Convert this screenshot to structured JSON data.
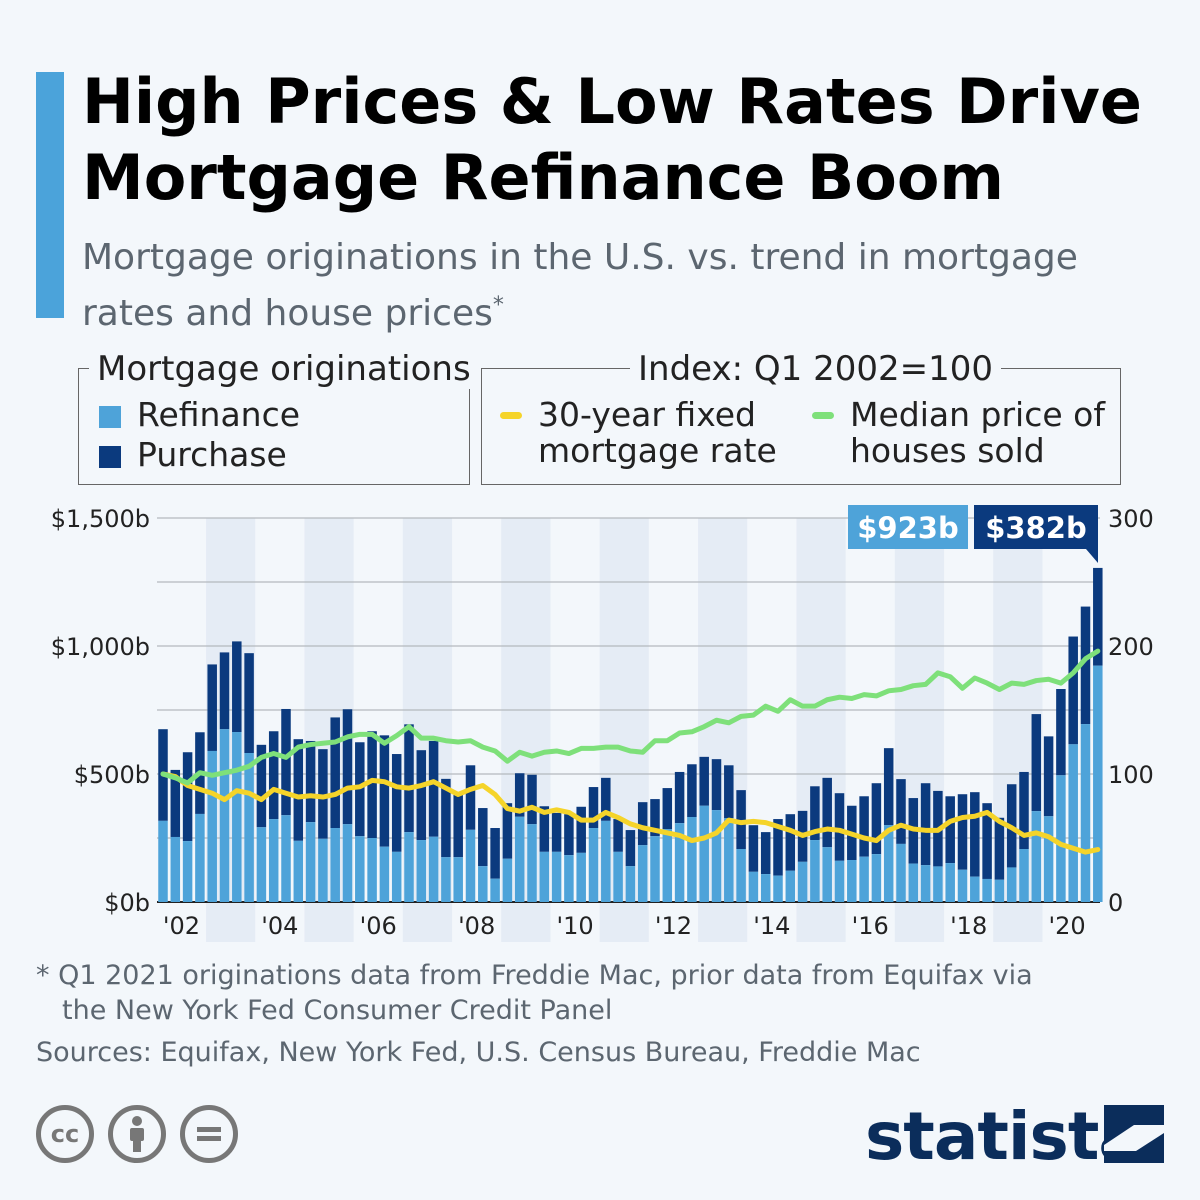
{
  "header": {
    "title": "High Prices & Low Rates Drive Mortgage Refinance Boom",
    "subtitle": "Mortgage originations in the U.S. vs. trend in mortgage rates and house prices",
    "subtitle_mark": "*"
  },
  "legend": {
    "left_title": "Mortgage originations",
    "refinance": "Refinance",
    "purchase": "Purchase",
    "right_title": "Index: Q1 2002=100",
    "rate_l1": "30-year fixed",
    "rate_l2": "mortgage rate",
    "price_l1": "Median price of",
    "price_l2": "houses sold"
  },
  "callouts": {
    "refinance": "$923b",
    "purchase": "$382b"
  },
  "footer": {
    "note_l1": "* Q1 2021 originations data from Freddie Mac, prior data from Equifax via",
    "note_l2": "the New York Fed Consumer Credit Panel",
    "sources": "Sources: Equifax, New York Fed, U.S. Census Bureau, Freddie Mac",
    "brand": "statista"
  },
  "icons": [
    "cc-icon",
    "attribution-icon",
    "no-derivatives-icon",
    "statista-logo-icon"
  ],
  "colors": {
    "refinance": "#4ea3d9",
    "purchase": "#0b3a7e",
    "rate": "#f5d42a",
    "price": "#7ee07a",
    "accent": "#4ba3da",
    "band": "#e5ecf5"
  },
  "chart_data": {
    "type": "bar+line",
    "x_start": "Q1 2002",
    "x_end": "Q1 2021",
    "frequency": "quarterly",
    "x_tick_labels": [
      "'02",
      "'04",
      "'06",
      "'08",
      "'10",
      "'12",
      "'14",
      "'16",
      "'18",
      "'20"
    ],
    "left_axis": {
      "ticks": [
        "$0b",
        "$500b",
        "$1,000b",
        "$1,500b"
      ],
      "ylim": [
        0,
        1500
      ],
      "unit": "$b"
    },
    "right_axis": {
      "ticks": [
        "0",
        "100",
        "200",
        "300"
      ],
      "ylim": [
        0,
        300
      ]
    },
    "grid": true,
    "stacked": true,
    "series": [
      {
        "name": "Refinance",
        "kind": "bar",
        "values": [
          317,
          254,
          238,
          344,
          590,
          675,
          664,
          582,
          292,
          324,
          339,
          239,
          312,
          247,
          289,
          304,
          257,
          250,
          216,
          196,
          273,
          242,
          255,
          175,
          175,
          282,
          140,
          91,
          169,
          333,
          304,
          196,
          196,
          183,
          192,
          289,
          317,
          196,
          140,
          222,
          257,
          285,
          308,
          332,
          376,
          359,
          328,
          207,
          118,
          109,
          103,
          122,
          157,
          242,
          214,
          161,
          164,
          177,
          187,
          300,
          227,
          150,
          144,
          139,
          152,
          126,
          99,
          90,
          87,
          135,
          207,
          355,
          335,
          495,
          616,
          695,
          923
        ]
      },
      {
        "name": "Purchase",
        "kind": "bar",
        "values": [
          358,
          262,
          347,
          319,
          338,
          300,
          354,
          390,
          322,
          343,
          415,
          397,
          317,
          350,
          432,
          449,
          367,
          417,
          435,
          382,
          421,
          351,
          374,
          306,
          243,
          252,
          227,
          198,
          217,
          170,
          193,
          178,
          152,
          160,
          180,
          160,
          168,
          128,
          141,
          168,
          145,
          160,
          200,
          206,
          191,
          199,
          206,
          230,
          182,
          164,
          221,
          221,
          199,
          210,
          271,
          264,
          212,
          236,
          277,
          301,
          253,
          256,
          320,
          295,
          261,
          295,
          330,
          296,
          242,
          325,
          301,
          379,
          312,
          337,
          421,
          459,
          382
        ]
      },
      {
        "name": "30-year fixed mortgage rate",
        "kind": "line",
        "axis": "right",
        "values": [
          100,
          98,
          91,
          88,
          85,
          80,
          87,
          85,
          80,
          88,
          85,
          82,
          83,
          82,
          84,
          89,
          90,
          95,
          94,
          90,
          89,
          91,
          94,
          89,
          84,
          88,
          91,
          84,
          73,
          71,
          74,
          70,
          72,
          70,
          64,
          64,
          70,
          66,
          61,
          58,
          56,
          54,
          52,
          48,
          50,
          54,
          64,
          62,
          63,
          62,
          59,
          56,
          52,
          55,
          57,
          56,
          53,
          50,
          48,
          56,
          60,
          57,
          56,
          56,
          63,
          66,
          67,
          70,
          63,
          58,
          52,
          54,
          51,
          45,
          42,
          39,
          41
        ]
      },
      {
        "name": "Median price of houses sold",
        "kind": "line",
        "axis": "right",
        "values": [
          100,
          97,
          93,
          101,
          99,
          101,
          103,
          106,
          113,
          116,
          113,
          121,
          123,
          124,
          125,
          129,
          131,
          131,
          124,
          130,
          137,
          128,
          128,
          126,
          125,
          126,
          121,
          118,
          110,
          117,
          114,
          117,
          118,
          116,
          120,
          120,
          121,
          121,
          118,
          117,
          126,
          126,
          132,
          133,
          137,
          142,
          140,
          145,
          146,
          153,
          149,
          158,
          153,
          153,
          158,
          160,
          159,
          162,
          161,
          165,
          166,
          169,
          170,
          179,
          176,
          167,
          175,
          171,
          166,
          171,
          170,
          173,
          174,
          171,
          179,
          190,
          196
        ]
      }
    ]
  }
}
